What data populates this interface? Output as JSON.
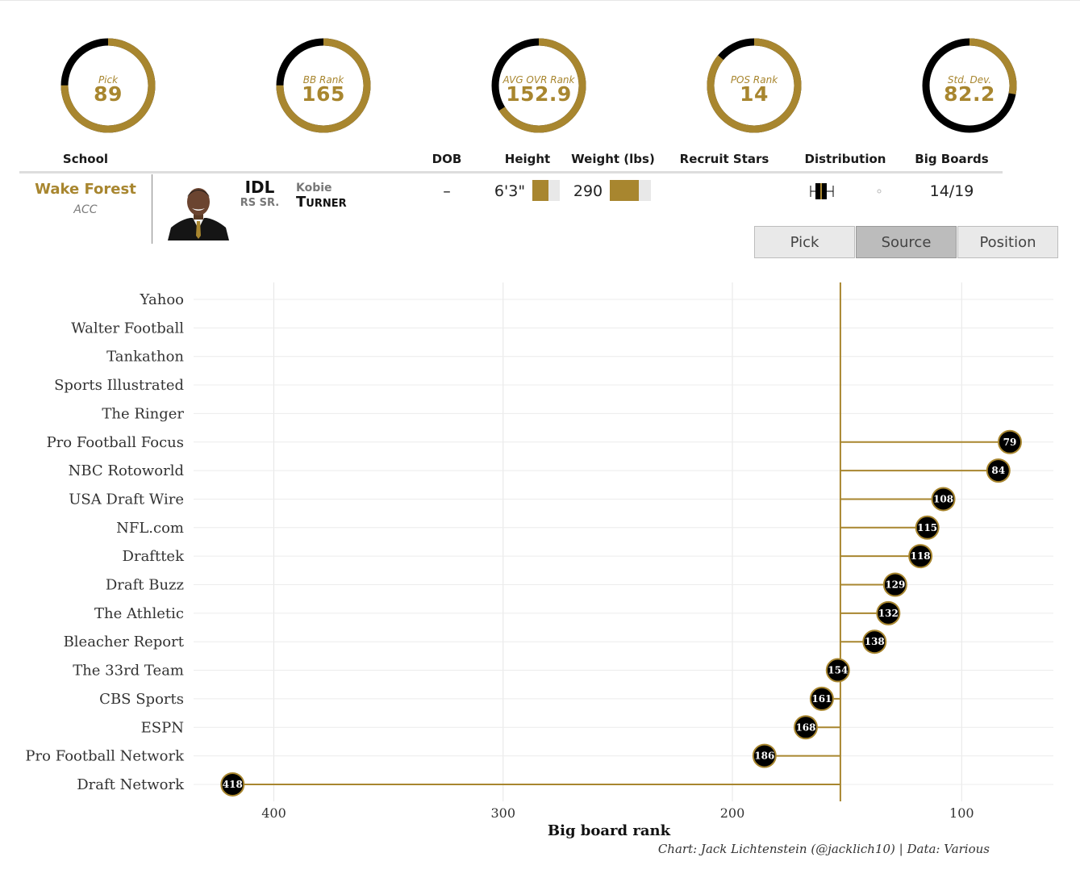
{
  "colors": {
    "gold": "#a8862f",
    "black": "#000000",
    "light": "#e8e8e8"
  },
  "stats": [
    {
      "label": "Pick",
      "value": "89",
      "fraction": 0.75
    },
    {
      "label": "BB Rank",
      "value": "165",
      "fraction": 0.75
    },
    {
      "label": "AVG OVR Rank",
      "value": "152.9",
      "fraction": 0.66
    },
    {
      "label": "POS Rank",
      "value": "14",
      "fraction": 0.86
    },
    {
      "label": "Std. Dev.",
      "value": "82.2",
      "fraction": 0.28
    }
  ],
  "headers": {
    "school": "School",
    "dob": "DOB",
    "height": "Height",
    "weight": "Weight (lbs)",
    "stars": "Recruit Stars",
    "distribution": "Distribution",
    "boards": "Big Boards"
  },
  "player": {
    "school": "Wake Forest",
    "conference": "ACC",
    "position": "IDL",
    "class": "RS SR.",
    "first": "Kobie",
    "last": "Turner",
    "dob": "–",
    "height": "6'3\"",
    "height_fill": 0.6,
    "weight": "290",
    "weight_fill": 0.7,
    "big_boards": "14/19",
    "photo_icon": "player-photo"
  },
  "buttons": {
    "pick": "Pick",
    "source": "Source",
    "position": "Position",
    "active": "source"
  },
  "chart_data": {
    "type": "lollipop",
    "reference_value": 152.9,
    "sources": [
      "Yahoo",
      "Walter Football",
      "Tankathon",
      "Sports Illustrated",
      "The Ringer",
      "Pro Football Focus",
      "NBC Rotoworld",
      "USA Draft Wire",
      "NFL.com",
      "Drafttek",
      "Draft Buzz",
      "The Athletic",
      "Bleacher Report",
      "The 33rd Team",
      "CBS Sports",
      "ESPN",
      "Pro Football Network",
      "Draft Network"
    ],
    "values": [
      null,
      null,
      null,
      null,
      null,
      79,
      84,
      108,
      115,
      118,
      129,
      132,
      138,
      154,
      161,
      168,
      186,
      418
    ],
    "xlabel": "Big board rank",
    "x_ticks": [
      400,
      300,
      200,
      100
    ],
    "xlim": [
      435,
      60
    ],
    "reversed": true
  },
  "caption": "Chart: Jack Lichtenstein (@jacklich10) | Data: Various"
}
